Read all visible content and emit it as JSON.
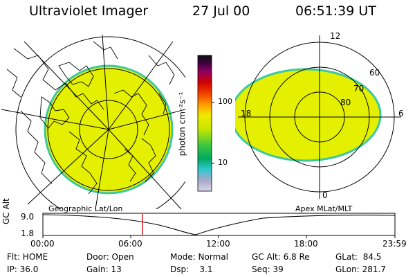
{
  "header": {
    "instrument": "Ultraviolet Imager",
    "date": "27 Jul 00",
    "time": "06:51:39 UT"
  },
  "left_panel": {
    "caption": "Geographic Lat/Lon",
    "image_color": "#e4f000",
    "rim_color": "#3cc8a0"
  },
  "colorbar": {
    "label": "photon cm⁻²s⁻¹",
    "ticks": [
      "100",
      "10"
    ],
    "stops": [
      "#d8d8e8",
      "#a8a8c8",
      "#30c8d0",
      "#00a860",
      "#40c840",
      "#c8e800",
      "#f0e800",
      "#ff9800",
      "#f04000",
      "#d00000",
      "#900060",
      "#400040",
      "#101010"
    ]
  },
  "right_panel": {
    "caption": "Apex MLat/MLT",
    "mlt_labels": {
      "top": "12",
      "left": "18",
      "right": "6",
      "bottom": "0"
    },
    "lat_labels": [
      "60",
      "70",
      "80"
    ]
  },
  "timeline": {
    "axis_label": "GC Alt",
    "y_max": "9.0",
    "y_min": "1.8",
    "x_ticks": [
      "00:00",
      "06:00",
      "12:00",
      "18:00",
      "23:59"
    ],
    "marker_color": "#cc0000"
  },
  "status": {
    "flt": "Flt: HOME",
    "ip": "IP: 36.0",
    "door": "Door: Open",
    "gain": "Gain: 13",
    "mode": "Mode: Normal",
    "dsp": "Dsp:    3.1",
    "gc_alt": "GC Alt: 6.8 Re",
    "seq": "Seq: 39",
    "glat": "GLat:  84.5",
    "glon": "GLon: 281.7"
  }
}
